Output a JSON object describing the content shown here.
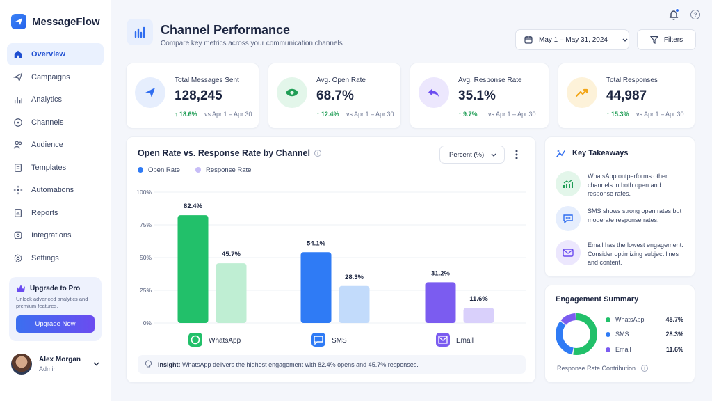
{
  "app": {
    "name": "MessageFlow"
  },
  "sidebar": {
    "items": [
      {
        "label": "Overview",
        "icon": "home-icon",
        "active": true
      },
      {
        "label": "Campaigns",
        "icon": "send-icon"
      },
      {
        "label": "Analytics",
        "icon": "bar-chart-icon"
      },
      {
        "label": "Channels",
        "icon": "chat-icon"
      },
      {
        "label": "Audience",
        "icon": "users-icon"
      },
      {
        "label": "Templates",
        "icon": "document-icon"
      },
      {
        "label": "Automations",
        "icon": "automation-icon"
      },
      {
        "label": "Reports",
        "icon": "report-icon"
      },
      {
        "label": "Integrations",
        "icon": "integration-icon"
      },
      {
        "label": "Settings",
        "icon": "gear-icon"
      }
    ],
    "upgrade": {
      "title": "Upgrade to Pro",
      "description": "Unlock advanced analytics and premium features.",
      "button": "Upgrade Now"
    },
    "user": {
      "name": "Alex Morgan",
      "role": "Admin"
    }
  },
  "header": {
    "title": "Channel Performance",
    "subtitle": "Compare key metrics across your communication channels",
    "date_range": "May 1 – May 31, 2024",
    "filters_label": "Filters"
  },
  "stats": [
    {
      "label": "Total Messages Sent",
      "value": "128,245",
      "delta": "↑ 18.6%",
      "compare": "vs Apr 1 – Apr 30",
      "icon": "paper-plane-icon",
      "color": "#2f6df0"
    },
    {
      "label": "Avg. Open Rate",
      "value": "68.7%",
      "delta": "↑ 12.4%",
      "compare": "vs Apr 1 – Apr 30",
      "icon": "eye-icon",
      "color": "#1f9d55"
    },
    {
      "label": "Avg. Response Rate",
      "value": "35.1%",
      "delta": "↑ 9.7%",
      "compare": "vs Apr 1 – Apr 30",
      "icon": "reply-icon",
      "color": "#6b4cf0"
    },
    {
      "label": "Total Responses",
      "value": "44,987",
      "delta": "↑ 15.3%",
      "compare": "vs Apr 1 – Apr 30",
      "icon": "trend-up-icon",
      "color": "#f2a516"
    }
  ],
  "chart": {
    "title": "Open Rate vs. Response Rate by Channel",
    "unit_select": "Percent (%)",
    "insight_label": "Insight:",
    "insight_text": "WhatsApp delivers the highest engagement with 82.4% opens and 45.7% responses."
  },
  "chart_data": {
    "type": "bar",
    "categories": [
      "WhatsApp",
      "SMS",
      "Email"
    ],
    "series": [
      {
        "name": "Open Rate",
        "values": [
          82.4,
          54.1,
          31.2
        ],
        "colors": [
          "#22c06a",
          "#2f7bf5",
          "#7b5cf0"
        ]
      },
      {
        "name": "Response Rate",
        "values": [
          45.7,
          28.3,
          11.6
        ],
        "colors": [
          "#bfeed3",
          "#c2dbfb",
          "#d9d0fb"
        ]
      }
    ],
    "value_labels": [
      [
        "82.4%",
        "54.1%",
        "31.2%"
      ],
      [
        "45.7%",
        "28.3%",
        "11.6%"
      ]
    ],
    "y_ticks": [
      "0%",
      "25%",
      "50%",
      "75%",
      "100%"
    ],
    "ylim": [
      0,
      100
    ],
    "legend_colors": [
      "#2f7bf5",
      "#c7bdf7"
    ],
    "legend_position": "top-left",
    "grid": true
  },
  "takeaways": {
    "title": "Key Takeaways",
    "items": [
      {
        "text": "WhatsApp outperforms other channels in both open and response rates.",
        "icon": "growth-chart-icon"
      },
      {
        "text": "SMS shows strong open rates but moderate response rates.",
        "icon": "sms-bubble-icon"
      },
      {
        "text": "Email has the lowest engagement. Consider optimizing subject lines and content.",
        "icon": "mail-icon"
      }
    ]
  },
  "engagement": {
    "title": "Engagement Summary",
    "rows": [
      {
        "label": "WhatsApp",
        "value": "45.7%",
        "share": 45.7,
        "color": "#22c06a"
      },
      {
        "label": "SMS",
        "value": "28.3%",
        "share": 28.3,
        "color": "#2f7bf5"
      },
      {
        "label": "Email",
        "value": "11.6%",
        "share": 11.6,
        "color": "#7b5cf0"
      }
    ],
    "footer": "Response Rate Contribution"
  }
}
